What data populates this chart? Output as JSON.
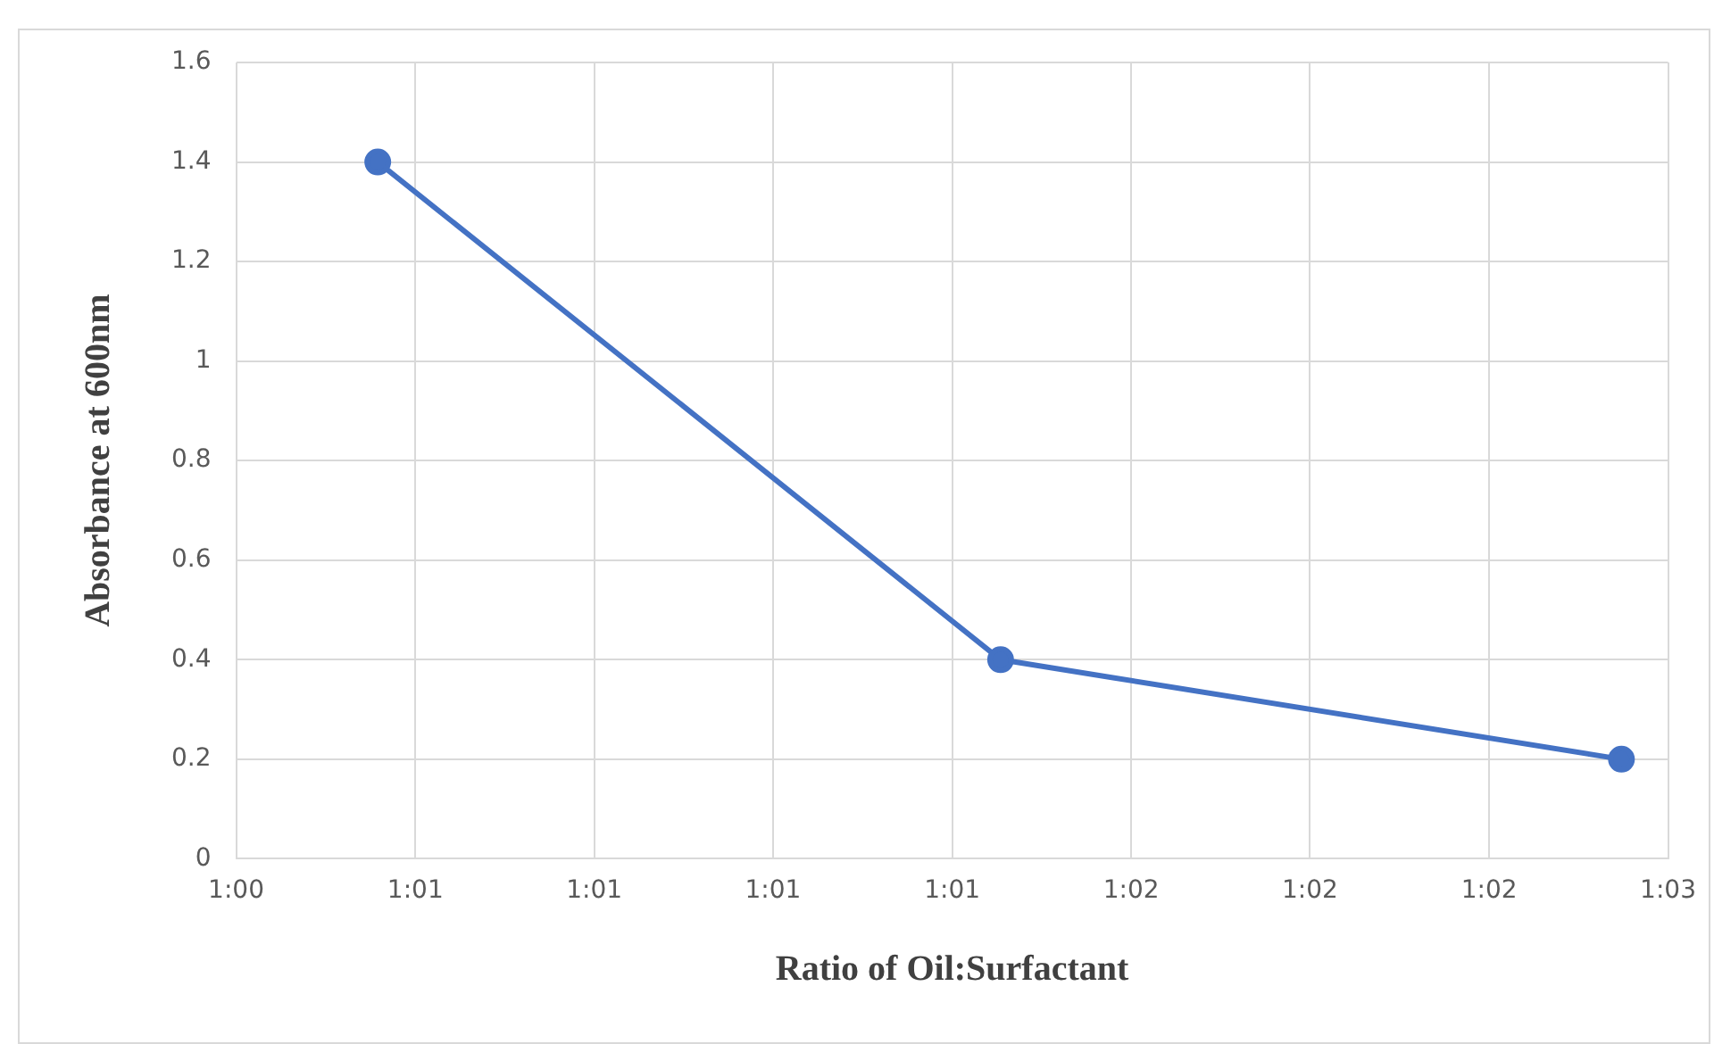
{
  "chart_data": {
    "type": "line",
    "xlabel": "Ratio of Oil:Surfactant",
    "ylabel": "Absorbance at 600nm",
    "x": [
      1.00755,
      1.02611,
      1.04461
    ],
    "series": [
      {
        "color": "#4472c4",
        "values": [
          1.4,
          0.4,
          0.2
        ]
      }
    ],
    "xlim": [
      1.00333,
      1.046
    ],
    "xticks": [
      {
        "value": 1.00333,
        "label": "1:00"
      },
      {
        "value": 1.00867,
        "label": "1:01"
      },
      {
        "value": 1.014,
        "label": "1:01"
      },
      {
        "value": 1.01933,
        "label": "1:01"
      },
      {
        "value": 1.02467,
        "label": "1:01"
      },
      {
        "value": 1.03,
        "label": "1:02"
      },
      {
        "value": 1.03533,
        "label": "1:02"
      },
      {
        "value": 1.04067,
        "label": "1:02"
      },
      {
        "value": 1.046,
        "label": "1:03"
      }
    ],
    "ylim": [
      0,
      1.6
    ],
    "yticks": [
      0,
      0.2,
      0.4,
      0.6,
      0.8,
      1,
      1.2,
      1.4,
      1.6
    ],
    "grid": true,
    "marker": "circle",
    "line_style": "solid"
  }
}
